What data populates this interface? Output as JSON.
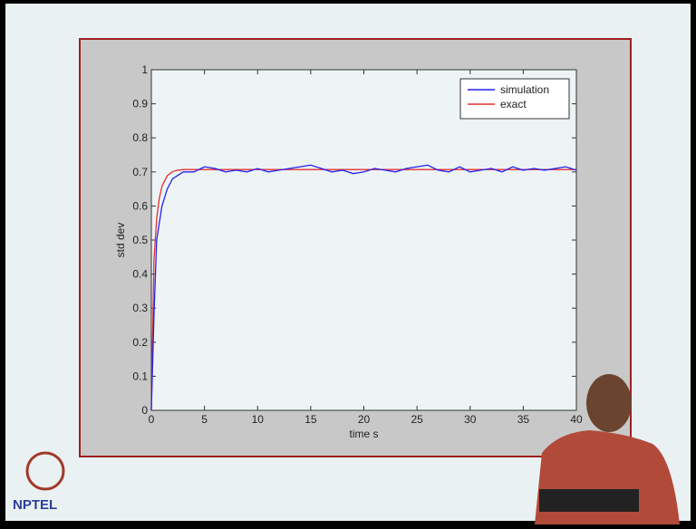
{
  "chart_data": {
    "type": "line",
    "x": [
      0,
      0.25,
      0.5,
      0.75,
      1,
      1.5,
      2,
      2.5,
      3,
      4,
      5,
      6,
      7,
      8,
      9,
      10,
      11,
      12,
      13,
      14,
      15,
      16,
      17,
      18,
      19,
      20,
      21,
      22,
      23,
      24,
      25,
      26,
      27,
      28,
      29,
      30,
      31,
      32,
      33,
      34,
      35,
      36,
      37,
      38,
      39,
      40
    ],
    "series": [
      {
        "name": "simulation",
        "color": "#2222ee",
        "values": [
          0,
          0.28,
          0.5,
          0.55,
          0.6,
          0.65,
          0.68,
          0.69,
          0.7,
          0.7,
          0.715,
          0.71,
          0.7,
          0.705,
          0.7,
          0.71,
          0.7,
          0.705,
          0.71,
          0.715,
          0.72,
          0.71,
          0.7,
          0.705,
          0.695,
          0.7,
          0.71,
          0.705,
          0.7,
          0.71,
          0.715,
          0.72,
          0.705,
          0.7,
          0.715,
          0.7,
          0.705,
          0.71,
          0.7,
          0.715,
          0.705,
          0.71,
          0.705,
          0.71,
          0.715,
          0.705
        ]
      },
      {
        "name": "exact",
        "color": "#e03030",
        "values": [
          0,
          0.444,
          0.562,
          0.623,
          0.658,
          0.689,
          0.701,
          0.705,
          0.707,
          0.707,
          0.707,
          0.707,
          0.707,
          0.707,
          0.707,
          0.707,
          0.707,
          0.707,
          0.707,
          0.707,
          0.707,
          0.707,
          0.707,
          0.707,
          0.707,
          0.707,
          0.707,
          0.707,
          0.707,
          0.707,
          0.707,
          0.707,
          0.707,
          0.707,
          0.707,
          0.707,
          0.707,
          0.707,
          0.707,
          0.707,
          0.707,
          0.707,
          0.707,
          0.707,
          0.707,
          0.707
        ]
      }
    ],
    "x_label": "time s",
    "y_label": "std dev",
    "xlim": [
      0,
      40
    ],
    "xticks": [
      0,
      5,
      10,
      15,
      20,
      25,
      30,
      35,
      40
    ],
    "ylim": [
      0,
      1
    ],
    "yticks": [
      0,
      0.1,
      0.2,
      0.3,
      0.4,
      0.5,
      0.6,
      0.7,
      0.8,
      0.9,
      1
    ],
    "grid": false,
    "legend": "upper right"
  },
  "logo": "NPTEL"
}
